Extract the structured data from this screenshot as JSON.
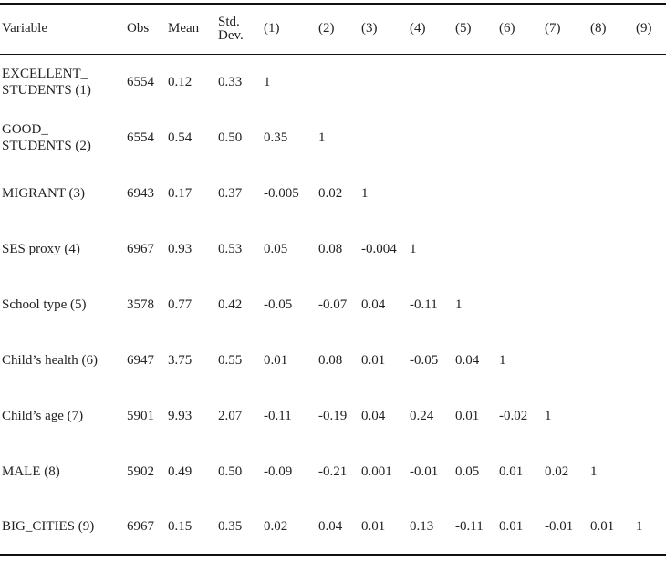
{
  "table": {
    "header": [
      "Variable",
      "Obs",
      "Mean",
      "Std.\nDev.",
      "(1)",
      "(2)",
      "(3)",
      "(4)",
      "(5)",
      "(6)",
      "(7)",
      "(8)",
      "(9)"
    ],
    "rows": [
      [
        "EXCELLENT_\nSTUDENTS (1)",
        "6554",
        "0.12",
        "0.33",
        "1"
      ],
      [
        "GOOD_\nSTUDENTS (2)",
        "6554",
        "0.54",
        "0.50",
        "0.35",
        "1"
      ],
      [
        "MIGRANT (3)",
        "6943",
        "0.17",
        "0.37",
        "-0.005",
        "0.02",
        "1"
      ],
      [
        "SES proxy (4)",
        "6967",
        "0.93",
        "0.53",
        "0.05",
        "0.08",
        "-0.004",
        "1"
      ],
      [
        "School type (5)",
        "3578",
        "0.77",
        "0.42",
        "-0.05",
        "-0.07",
        "0.04",
        "-0.11",
        "1"
      ],
      [
        "Child’s health (6)",
        "6947",
        "3.75",
        "0.55",
        "0.01",
        "0.08",
        "0.01",
        "-0.05",
        "0.04",
        "1"
      ],
      [
        "Child’s age (7)",
        "5901",
        "9.93",
        "2.07",
        "-0.11",
        "-0.19",
        "0.04",
        "0.24",
        "0.01",
        "-0.02",
        "1"
      ],
      [
        "MALE (8)",
        "5902",
        "0.49",
        "0.50",
        "-0.09",
        "-0.21",
        "0.001",
        "-0.01",
        "0.05",
        "0.01",
        "0.02",
        "1"
      ],
      [
        "BIG_CITIES (9)",
        "6967",
        "0.15",
        "0.35",
        "0.02",
        "0.04",
        "0.01",
        "0.13",
        "-0.11",
        "0.01",
        "-0.01",
        "0.01",
        "1"
      ]
    ]
  }
}
